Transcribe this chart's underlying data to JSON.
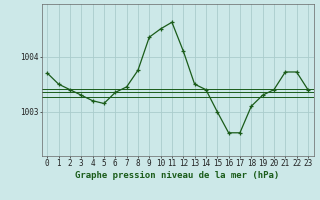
{
  "background_color": "#cce8e8",
  "grid_color": "#aacccc",
  "line_color": "#1a5c1a",
  "title": "Graphe pression niveau de la mer (hPa)",
  "ylabel_ticks": [
    1003,
    1004
  ],
  "x_labels": [
    "0",
    "1",
    "2",
    "3",
    "4",
    "5",
    "6",
    "7",
    "8",
    "9",
    "10",
    "11",
    "12",
    "13",
    "14",
    "15",
    "16",
    "17",
    "18",
    "19",
    "20",
    "21",
    "22",
    "23"
  ],
  "series_main": [
    1003.7,
    1003.5,
    1003.4,
    1003.3,
    1003.2,
    1003.15,
    1003.35,
    1003.45,
    1003.75,
    1004.35,
    1004.5,
    1004.62,
    1004.1,
    1003.5,
    1003.4,
    1003.0,
    1002.62,
    1002.62,
    1003.1,
    1003.3,
    1003.4,
    1003.72,
    1003.72,
    1003.4
  ],
  "series_flat1": 1003.42,
  "series_flat2": 1003.35,
  "series_flat3": 1003.27,
  "ylim": [
    1002.2,
    1004.95
  ],
  "title_fontsize": 6.5,
  "tick_fontsize": 5.5
}
